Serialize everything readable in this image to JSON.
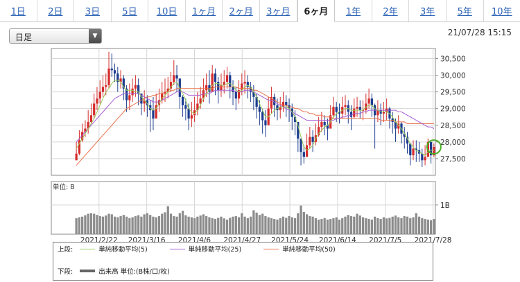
{
  "tabs": [
    "1日",
    "2日",
    "3日",
    "5日",
    "10日",
    "1ヶ月",
    "2ヶ月",
    "3ヶ月",
    "6ヶ月",
    "1年",
    "2年",
    "3年",
    "5年",
    "10年"
  ],
  "active_tab": "6ヶ月",
  "period_select": {
    "value": "日足"
  },
  "timestamp": "21/07/28 15:15",
  "colors": {
    "up": "#d62c2c",
    "down": "#1d3d8f",
    "ma5": "#9acd5a",
    "ma25": "#a55ad2",
    "ma50": "#e8704a",
    "volume": "#8c8c8c",
    "marker": "#4caf28"
  },
  "chart_data": {
    "type": "candlestick",
    "price_axis": {
      "ylim": [
        27000,
        30800
      ],
      "ticks": [
        "30,500",
        "30,000",
        "29,500",
        "29,000",
        "28,500",
        "28,000",
        "27,500"
      ]
    },
    "volume_axis": {
      "label": "単位: B",
      "ticks": [
        "1B"
      ]
    },
    "x_labels": [
      "2021/2/22",
      "2021/3/16",
      "2021/4/6",
      "2021/4/27",
      "2021/5/24",
      "2021/6/14",
      "2021/7/5",
      "2021/7/28"
    ],
    "closes": [
      27650,
      28050,
      28300,
      28400,
      28600,
      28800,
      29150,
      29300,
      29500,
      29650,
      29700,
      30200,
      30150,
      30050,
      29800,
      29900,
      29600,
      29250,
      29400,
      29600,
      29700,
      29450,
      29150,
      29250,
      29100,
      28950,
      28700,
      29100,
      29250,
      29450,
      29500,
      29600,
      29800,
      30000,
      29900,
      29350,
      29100,
      29000,
      28700,
      28800,
      28950,
      29150,
      29300,
      29550,
      29700,
      29500,
      30050,
      29800,
      29550,
      29700,
      29800,
      30000,
      29650,
      29500,
      29300,
      29550,
      29750,
      29800,
      29650,
      29500,
      29350,
      29050,
      28900,
      28650,
      28500,
      29000,
      29350,
      29100,
      28950,
      29050,
      29200,
      29100,
      29000,
      28750,
      28600,
      28100,
      27700,
      27550,
      27900,
      28150,
      28000,
      28200,
      28450,
      28600,
      28500,
      28400,
      28800,
      29050,
      28900,
      28850,
      29050,
      29100,
      28900,
      28750,
      29000,
      29050,
      28950,
      28950,
      29150,
      29300,
      29100,
      28800,
      28950,
      28850,
      28900,
      29000,
      28700,
      28600,
      28400,
      28550,
      28250,
      28150,
      27950,
      27600,
      27800,
      27750,
      27650,
      27450,
      27550,
      28000,
      27600,
      27850
    ],
    "highs": [
      28000,
      28350,
      28550,
      28650,
      28950,
      29150,
      29450,
      29650,
      29850,
      30000,
      30050,
      30700,
      30650,
      30350,
      30250,
      30150,
      30000,
      29700,
      29750,
      29900,
      30000,
      29900,
      29450,
      29550,
      29400,
      29250,
      29350,
      29450,
      29600,
      29800,
      29900,
      29950,
      30100,
      30450,
      30300,
      29650,
      29400,
      29300,
      29150,
      29200,
      29350,
      29500,
      29650,
      29900,
      30050,
      30150,
      30300,
      30200,
      29950,
      30050,
      30150,
      30250,
      30100,
      29850,
      29650,
      29850,
      30050,
      30150,
      30000,
      29800,
      29700,
      29450,
      29250,
      29000,
      28950,
      29350,
      29650,
      29450,
      29300,
      29350,
      29500,
      29400,
      29300,
      29150,
      28950,
      28600,
      28100,
      27900,
      28250,
      28450,
      28350,
      28550,
      28750,
      28900,
      28800,
      28700,
      29100,
      29350,
      29200,
      29150,
      29350,
      29400,
      29250,
      29100,
      29300,
      29350,
      29250,
      29250,
      29450,
      29600,
      29450,
      29150,
      29250,
      29150,
      29200,
      29300,
      29050,
      28900,
      28700,
      28800,
      28600,
      28450,
      28300,
      27900,
      28050,
      28050,
      28000,
      27800,
      27900,
      28100,
      28000,
      27950
    ],
    "lows": [
      27550,
      27600,
      28000,
      28150,
      28250,
      28550,
      28700,
      28950,
      29150,
      29350,
      29400,
      29600,
      29950,
      29800,
      29500,
      29600,
      29250,
      28900,
      28950,
      29200,
      29350,
      29100,
      28800,
      28900,
      28750,
      28300,
      28350,
      28700,
      28900,
      29150,
      29200,
      29300,
      29500,
      29700,
      29500,
      29000,
      28750,
      28650,
      28350,
      28450,
      28600,
      28800,
      29000,
      29200,
      29350,
      29150,
      29500,
      29400,
      29150,
      29350,
      29450,
      29600,
      29300,
      29100,
      28950,
      29150,
      29400,
      29450,
      29300,
      29200,
      28950,
      28700,
      28500,
      28250,
      28150,
      28500,
      28850,
      28750,
      28650,
      28700,
      28900,
      28750,
      28600,
      28350,
      28200,
      27700,
      27300,
      27350,
      27550,
      27800,
      27700,
      27900,
      28150,
      28300,
      28200,
      28050,
      28450,
      28700,
      28600,
      28550,
      28700,
      28800,
      28550,
      28350,
      28700,
      28750,
      28700,
      28650,
      28850,
      29000,
      28750,
      27800,
      28600,
      28500,
      28600,
      28650,
      28400,
      28250,
      28000,
      28250,
      27950,
      27800,
      27650,
      27300,
      27450,
      27400,
      27400,
      27250,
      27300,
      27650,
      27350,
      27550
    ],
    "ma5": [
      27800,
      27950,
      28100,
      28250,
      28400,
      28550,
      28700,
      28900,
      29100,
      29300,
      29500,
      29600,
      29750,
      29850,
      29850,
      29800,
      29650,
      29550,
      29550,
      29550,
      29500,
      29500,
      29350,
      29250,
      29150,
      29000,
      28950,
      29000,
      29150,
      29300,
      29400,
      29500,
      29650,
      29750,
      29800,
      29600,
      29450,
      29250,
      29000,
      28900,
      28850,
      28950,
      29100,
      29300,
      29450,
      29550,
      29700,
      29750,
      29750,
      29700,
      29700,
      29750,
      29750,
      29700,
      29550,
      29500,
      29550,
      29650,
      29700,
      29650,
      29500,
      29350,
      29150,
      28950,
      28750,
      28750,
      28850,
      28950,
      29000,
      29050,
      29050,
      29050,
      29000,
      28900,
      28750,
      28500,
      28150,
      27850,
      27750,
      27800,
      27900,
      28100,
      28250,
      28350,
      28450,
      28500,
      28600,
      28750,
      28850,
      28900,
      28950,
      29000,
      29000,
      28950,
      28950,
      28950,
      28950,
      28950,
      29050,
      29100,
      29100,
      29000,
      28950,
      28900,
      28900,
      28900,
      28850,
      28750,
      28600,
      28500,
      28400,
      28250,
      28100,
      27950,
      27850,
      27750,
      27700,
      27650,
      27600,
      27700,
      27750,
      27750
    ],
    "ma25": [
      28000,
      28100,
      28200,
      28300,
      28400,
      28500,
      28600,
      28700,
      28800,
      28900,
      29000,
      29100,
      29200,
      29300,
      29350,
      29400,
      29450,
      29450,
      29450,
      29450,
      29450,
      29450,
      29400,
      29350,
      29300,
      29250,
      29200,
      29200,
      29200,
      29250,
      29300,
      29350,
      29400,
      29450,
      29500,
      29500,
      29500,
      29450,
      29400,
      29400,
      29400,
      29400,
      29400,
      29450,
      29450,
      29450,
      29500,
      29550,
      29550,
      29550,
      29550,
      29550,
      29550,
      29550,
      29500,
      29500,
      29500,
      29550,
      29550,
      29550,
      29500,
      29450,
      29400,
      29350,
      29300,
      29250,
      29250,
      29200,
      29150,
      29100,
      29050,
      29000,
      28950,
      28900,
      28850,
      28800,
      28750,
      28700,
      28650,
      28650,
      28650,
      28650,
      28650,
      28650,
      28650,
      28650,
      28650,
      28650,
      28700,
      28700,
      28750,
      28750,
      28800,
      28800,
      28850,
      28850,
      28850,
      28900,
      28900,
      28950,
      28950,
      28950,
      28950,
      28950,
      28950,
      28950,
      28950,
      28950,
      28950,
      28900,
      28900,
      28850,
      28800,
      28750,
      28700,
      28650,
      28600,
      28550,
      28500,
      28450,
      28450,
      28400
    ],
    "ma50": [
      27300,
      27400,
      27500,
      27600,
      27700,
      27800,
      27900,
      28000,
      28100,
      28200,
      28300,
      28400,
      28500,
      28600,
      28700,
      28800,
      28900,
      29000,
      29050,
      29100,
      29150,
      29200,
      29250,
      29300,
      29350,
      29350,
      29400,
      29400,
      29450,
      29450,
      29500,
      29500,
      29550,
      29550,
      29600,
      29600,
      29600,
      29600,
      29600,
      29600,
      29600,
      29600,
      29600,
      29600,
      29600,
      29600,
      29600,
      29650,
      29650,
      29650,
      29650,
      29650,
      29650,
      29650,
      29650,
      29600,
      29600,
      29600,
      29600,
      29600,
      29550,
      29550,
      29500,
      29450,
      29400,
      29350,
      29300,
      29250,
      29200,
      29150,
      29100,
      29100,
      29050,
      29050,
      29000,
      29000,
      28950,
      28900,
      28900,
      28850,
      28850,
      28800,
      28800,
      28800,
      28750,
      28750,
      28750,
      28700,
      28700,
      28700,
      28700,
      28700,
      28700,
      28700,
      28700,
      28700,
      28700,
      28700,
      28700,
      28700,
      28700,
      28700,
      28700,
      28650,
      28650,
      28650,
      28650,
      28650,
      28600,
      28600,
      28600,
      28600,
      28550,
      28550,
      28550,
      28550,
      28550,
      28550,
      28550,
      28550,
      28550,
      28550
    ],
    "volumes": [
      0.55,
      0.58,
      0.6,
      0.65,
      0.7,
      0.72,
      0.7,
      0.66,
      0.62,
      0.6,
      0.64,
      0.7,
      0.68,
      0.6,
      0.58,
      0.62,
      0.66,
      0.6,
      0.55,
      0.58,
      0.62,
      0.65,
      0.6,
      0.68,
      0.72,
      0.66,
      0.6,
      0.58,
      0.62,
      0.7,
      0.75,
      0.96,
      0.7,
      0.62,
      0.6,
      0.72,
      0.8,
      0.65,
      0.6,
      0.58,
      0.55,
      0.6,
      0.64,
      0.68,
      0.62,
      0.58,
      0.55,
      0.52,
      0.56,
      0.6,
      0.54,
      0.5,
      0.56,
      0.6,
      0.62,
      0.58,
      0.72,
      0.6,
      0.55,
      0.6,
      0.82,
      0.74,
      0.66,
      0.7,
      0.62,
      0.58,
      0.55,
      0.52,
      0.5,
      0.55,
      0.6,
      0.56,
      0.62,
      0.58,
      0.55,
      0.72,
      0.98,
      0.76,
      0.68,
      0.62,
      0.6,
      0.55,
      0.5,
      0.52,
      0.55,
      0.5,
      0.52,
      0.55,
      0.58,
      0.5,
      0.55,
      0.6,
      0.66,
      0.62,
      0.6,
      0.7,
      0.64,
      0.58,
      0.55,
      0.52,
      0.5,
      0.6,
      0.55,
      0.52,
      0.58,
      0.54,
      0.56,
      0.6,
      0.64,
      0.58,
      0.55,
      0.62,
      0.6,
      0.55,
      0.58,
      0.72,
      0.6,
      0.55,
      0.52,
      0.5,
      0.48,
      0.52
    ]
  },
  "legend": {
    "upper_label": "上段:",
    "lower_label": "下段:",
    "ma5_label": "単純移動平均(5)",
    "ma25_label": "単純移動平均(25)",
    "ma50_label": "単純移動平均(50)",
    "volume_label": "出来高 単位:(B株/口/枚)"
  }
}
